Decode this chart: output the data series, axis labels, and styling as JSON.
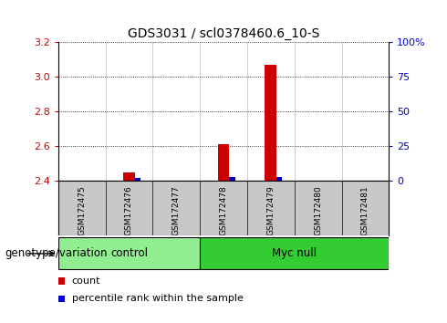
{
  "title": "GDS3031 / scl0378460.6_10-S",
  "samples": [
    "GSM172475",
    "GSM172476",
    "GSM172477",
    "GSM172478",
    "GSM172479",
    "GSM172480",
    "GSM172481"
  ],
  "count_values": [
    2.4,
    2.45,
    2.4,
    2.61,
    3.07,
    2.4,
    2.4
  ],
  "percentile_values": [
    0,
    2,
    0,
    3,
    3,
    0,
    0
  ],
  "ylim_left": [
    2.4,
    3.2
  ],
  "ylim_right": [
    0,
    100
  ],
  "yticks_left": [
    2.4,
    2.6,
    2.8,
    3.0,
    3.2
  ],
  "yticks_right": [
    0,
    25,
    50,
    75,
    100
  ],
  "ytick_labels_right": [
    "0",
    "25",
    "50",
    "75",
    "100%"
  ],
  "red_color": "#CC0000",
  "blue_color": "#0000CC",
  "groups": [
    {
      "name": "control",
      "start": 0,
      "end": 2,
      "color": "#90EE90"
    },
    {
      "name": "Myc null",
      "start": 3,
      "end": 6,
      "color": "#33CC33"
    }
  ],
  "group_label": "genotype/variation",
  "legend_items": [
    {
      "label": "count",
      "color": "#CC0000"
    },
    {
      "label": "percentile rank within the sample",
      "color": "#0000CC"
    }
  ],
  "title_fontsize": 10,
  "tick_fontsize": 8,
  "label_fontsize": 8.5,
  "sample_tick_fontsize": 6.5,
  "sample_bg": "#C8C8C8",
  "plot_bg": "#ffffff"
}
